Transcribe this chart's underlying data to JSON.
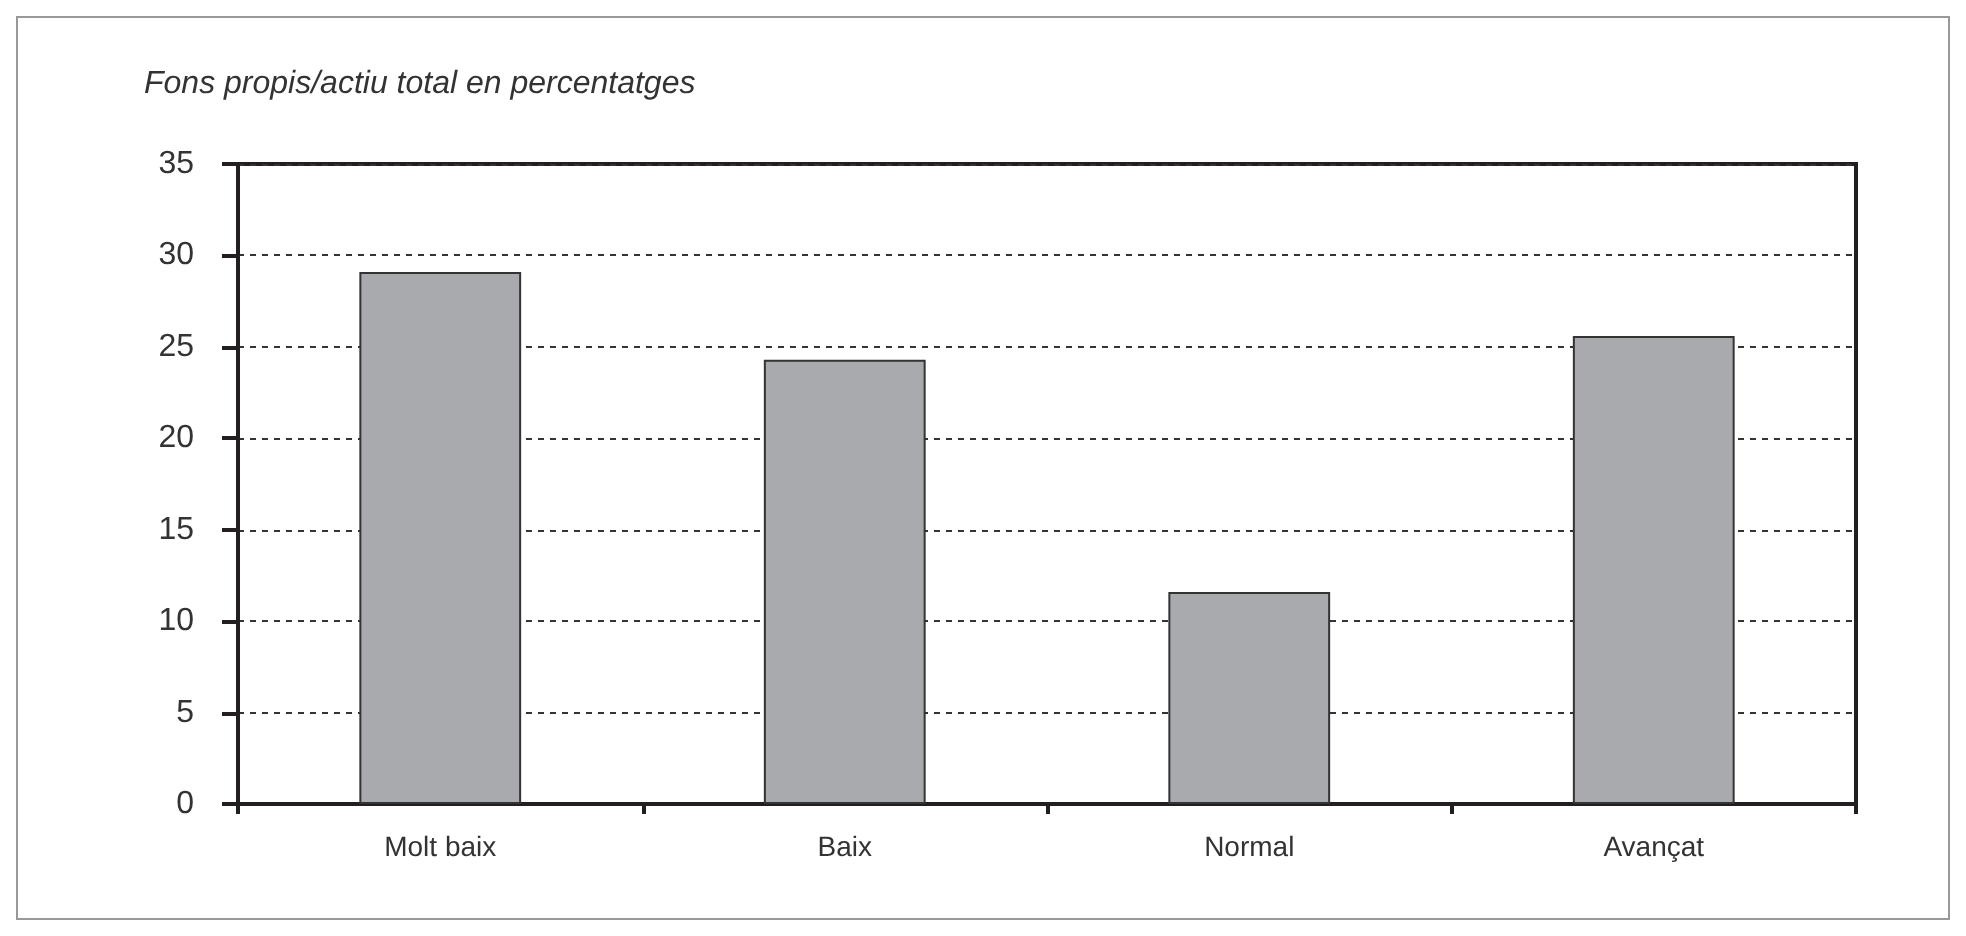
{
  "chart_data": {
    "type": "bar",
    "title": "Fons propis/actiu total en percentatges",
    "categories": [
      "Molt baix",
      "Baix",
      "Normal",
      "Avançat"
    ],
    "values": [
      29.1,
      24.3,
      11.6,
      25.6
    ],
    "color": "#a9aaad",
    "ylim": [
      0,
      35
    ],
    "yticks": [
      0,
      5,
      10,
      15,
      20,
      25,
      30,
      35
    ],
    "grid": "y"
  }
}
